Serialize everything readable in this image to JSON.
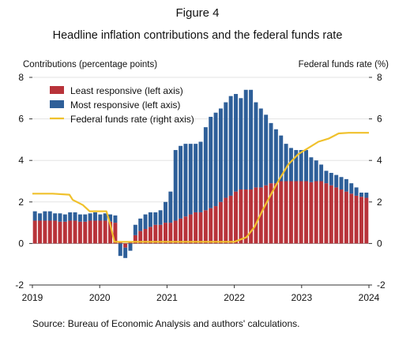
{
  "figure_label": "Figure 4",
  "source": "Source: Bureau of Economic Analysis and authors' calculations.",
  "chart_data": {
    "type": "bar",
    "title": "Headline inflation contributions and the federal funds rate",
    "ylabel_left": "Contributions (percentage points)",
    "ylabel_right": "Federal funds rate (%)",
    "ylim": [
      -2,
      8
    ],
    "yticks": [
      -2,
      0,
      2,
      4,
      6,
      8
    ],
    "x_range": [
      2019.0,
      2024.0
    ],
    "xticks": [
      2019,
      2020,
      2021,
      2022,
      2023,
      2024
    ],
    "legend": {
      "position": "top-left"
    },
    "colors": {
      "least": "#b8333a",
      "most": "#2e5f99",
      "rate": "#f0c12c"
    },
    "series": [
      {
        "name": "Least responsive (left axis)",
        "kind": "bar-stack",
        "values": [
          1.1,
          1.1,
          1.1,
          1.1,
          1.1,
          1.05,
          1.05,
          1.1,
          1.1,
          1.05,
          1.05,
          1.1,
          1.1,
          1.1,
          1.1,
          1.05,
          1.0,
          0.05,
          -0.2,
          0.05,
          0.4,
          0.6,
          0.7,
          0.8,
          0.9,
          0.9,
          1.0,
          1.0,
          1.1,
          1.2,
          1.3,
          1.4,
          1.5,
          1.5,
          1.6,
          1.7,
          1.8,
          2.0,
          2.2,
          2.3,
          2.5,
          2.6,
          2.6,
          2.6,
          2.7,
          2.7,
          2.8,
          2.9,
          2.9,
          3.0,
          3.0,
          3.0,
          3.0,
          3.0,
          3.0,
          2.95,
          3.0,
          3.0,
          2.9,
          2.8,
          2.7,
          2.6,
          2.5,
          2.4,
          2.3,
          2.25,
          2.2
        ]
      },
      {
        "name": "Most responsive (left axis)",
        "kind": "bar-stack",
        "values": [
          0.45,
          0.35,
          0.45,
          0.45,
          0.35,
          0.4,
          0.35,
          0.4,
          0.4,
          0.35,
          0.35,
          0.35,
          0.4,
          0.3,
          0.35,
          0.35,
          0.35,
          -0.6,
          -0.5,
          -0.35,
          0.5,
          0.6,
          0.7,
          0.7,
          0.6,
          0.7,
          1.0,
          1.5,
          3.4,
          3.5,
          3.5,
          3.4,
          3.3,
          3.4,
          4.0,
          4.4,
          4.5,
          4.5,
          4.6,
          4.8,
          4.7,
          4.4,
          4.8,
          4.8,
          4.1,
          3.8,
          3.4,
          2.9,
          2.6,
          2.2,
          1.8,
          1.6,
          1.5,
          1.5,
          1.5,
          1.2,
          1.0,
          0.8,
          0.6,
          0.6,
          0.6,
          0.6,
          0.6,
          0.5,
          0.4,
          0.2,
          0.25
        ]
      },
      {
        "name": "Federal funds rate (right axis)",
        "kind": "line",
        "points": [
          [
            2019.0,
            2.4
          ],
          [
            2019.3,
            2.4
          ],
          [
            2019.55,
            2.35
          ],
          [
            2019.6,
            2.1
          ],
          [
            2019.75,
            1.85
          ],
          [
            2019.85,
            1.55
          ],
          [
            2020.1,
            1.55
          ],
          [
            2020.15,
            1.0
          ],
          [
            2020.22,
            0.08
          ],
          [
            2020.5,
            0.08
          ],
          [
            2021.0,
            0.08
          ],
          [
            2021.5,
            0.08
          ],
          [
            2022.0,
            0.08
          ],
          [
            2022.18,
            0.3
          ],
          [
            2022.3,
            0.8
          ],
          [
            2022.42,
            1.6
          ],
          [
            2022.55,
            2.4
          ],
          [
            2022.67,
            3.1
          ],
          [
            2022.8,
            3.8
          ],
          [
            2022.95,
            4.3
          ],
          [
            2023.1,
            4.6
          ],
          [
            2023.25,
            4.9
          ],
          [
            2023.4,
            5.05
          ],
          [
            2023.55,
            5.3
          ],
          [
            2023.7,
            5.33
          ],
          [
            2024.0,
            5.33
          ]
        ]
      }
    ]
  }
}
